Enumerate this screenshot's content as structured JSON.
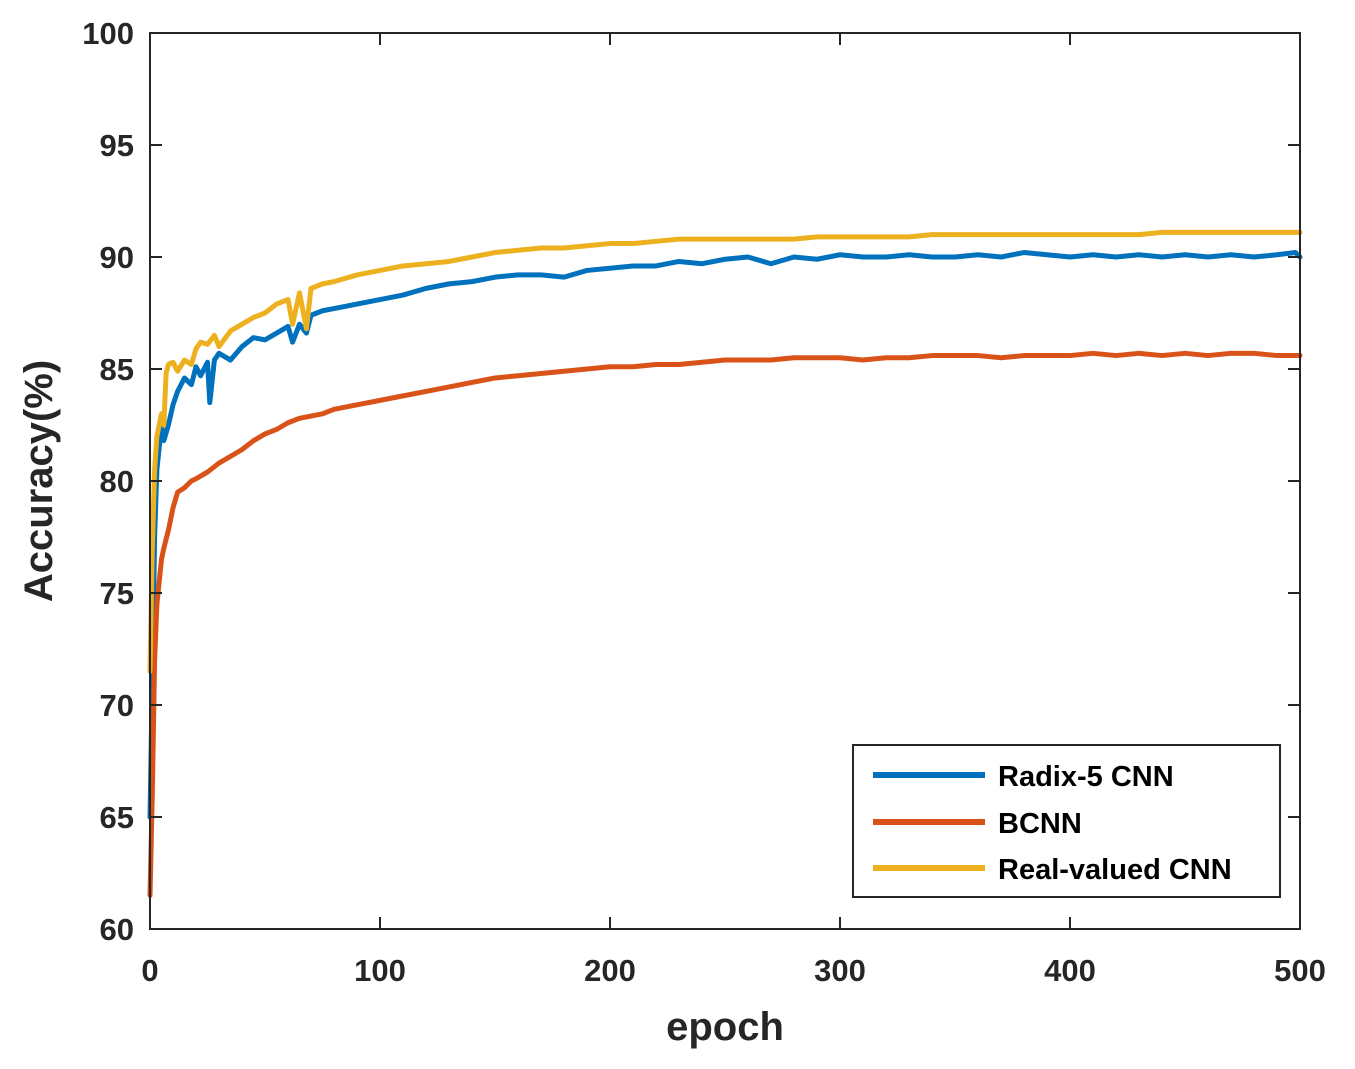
{
  "chart_data": {
    "type": "line",
    "title": "",
    "xlabel": "epoch",
    "ylabel": "Accuracy(%)",
    "xlim": [
      0,
      500
    ],
    "ylim": [
      60,
      100
    ],
    "xticks": [
      0,
      100,
      200,
      300,
      400,
      500
    ],
    "yticks": [
      60,
      65,
      70,
      75,
      80,
      85,
      90,
      95,
      100
    ],
    "grid": false,
    "legend": {
      "position": "bottom-right",
      "boxed": true
    },
    "series": [
      {
        "name": "Radix-5 CNN",
        "color": "#0072BD",
        "x": [
          0,
          1,
          2,
          3,
          4,
          5,
          6,
          8,
          10,
          12,
          15,
          18,
          20,
          22,
          25,
          26,
          28,
          30,
          35,
          40,
          45,
          50,
          55,
          60,
          62,
          65,
          68,
          70,
          75,
          80,
          90,
          100,
          110,
          120,
          130,
          140,
          150,
          160,
          170,
          180,
          190,
          200,
          210,
          220,
          230,
          240,
          250,
          260,
          270,
          280,
          290,
          300,
          310,
          320,
          330,
          340,
          350,
          360,
          370,
          380,
          390,
          400,
          410,
          420,
          430,
          440,
          450,
          460,
          470,
          480,
          490,
          498,
          500
        ],
        "y": [
          65.0,
          71.0,
          77.5,
          80.5,
          81.5,
          82.5,
          81.8,
          82.5,
          83.4,
          84.0,
          84.6,
          84.3,
          85.1,
          84.7,
          85.3,
          83.5,
          85.4,
          85.7,
          85.4,
          86.0,
          86.4,
          86.3,
          86.6,
          86.9,
          86.2,
          87.0,
          86.6,
          87.4,
          87.6,
          87.7,
          87.9,
          88.1,
          88.3,
          88.6,
          88.8,
          88.9,
          89.1,
          89.2,
          89.2,
          89.1,
          89.4,
          89.5,
          89.6,
          89.6,
          89.8,
          89.7,
          89.9,
          90.0,
          89.7,
          90.0,
          89.9,
          90.1,
          90.0,
          90.0,
          90.1,
          90.0,
          90.0,
          90.1,
          90.0,
          90.2,
          90.1,
          90.0,
          90.1,
          90.0,
          90.1,
          90.0,
          90.1,
          90.0,
          90.1,
          90.0,
          90.1,
          90.2,
          90.0
        ]
      },
      {
        "name": "BCNN",
        "color": "#D95319",
        "x": [
          0,
          1,
          2,
          3,
          4,
          5,
          6,
          8,
          10,
          12,
          15,
          18,
          20,
          25,
          30,
          35,
          40,
          45,
          50,
          55,
          60,
          65,
          70,
          75,
          80,
          85,
          90,
          100,
          110,
          120,
          130,
          140,
          150,
          160,
          170,
          180,
          190,
          200,
          210,
          220,
          230,
          240,
          250,
          260,
          270,
          280,
          290,
          300,
          310,
          320,
          330,
          340,
          350,
          360,
          370,
          380,
          390,
          400,
          410,
          420,
          430,
          440,
          450,
          460,
          470,
          480,
          490,
          500
        ],
        "y": [
          61.5,
          66.0,
          72.0,
          74.5,
          75.5,
          76.5,
          77.0,
          77.8,
          78.8,
          79.5,
          79.7,
          80.0,
          80.1,
          80.4,
          80.8,
          81.1,
          81.4,
          81.8,
          82.1,
          82.3,
          82.6,
          82.8,
          82.9,
          83.0,
          83.2,
          83.3,
          83.4,
          83.6,
          83.8,
          84.0,
          84.2,
          84.4,
          84.6,
          84.7,
          84.8,
          84.9,
          85.0,
          85.1,
          85.1,
          85.2,
          85.2,
          85.3,
          85.4,
          85.4,
          85.4,
          85.5,
          85.5,
          85.5,
          85.4,
          85.5,
          85.5,
          85.6,
          85.6,
          85.6,
          85.5,
          85.6,
          85.6,
          85.6,
          85.7,
          85.6,
          85.7,
          85.6,
          85.7,
          85.6,
          85.7,
          85.7,
          85.6,
          85.6
        ]
      },
      {
        "name": "Real-valued CNN",
        "color": "#EDB120",
        "x": [
          0,
          1,
          2,
          3,
          4,
          5,
          6,
          7,
          8,
          10,
          12,
          15,
          18,
          20,
          22,
          25,
          28,
          30,
          35,
          40,
          45,
          50,
          55,
          60,
          62,
          65,
          68,
          70,
          75,
          80,
          90,
          100,
          110,
          120,
          130,
          140,
          150,
          160,
          170,
          180,
          190,
          200,
          210,
          220,
          230,
          240,
          250,
          260,
          270,
          280,
          290,
          300,
          310,
          320,
          330,
          340,
          350,
          360,
          370,
          380,
          390,
          400,
          410,
          420,
          430,
          440,
          450,
          460,
          470,
          480,
          490,
          500
        ],
        "y": [
          71.5,
          77.0,
          80.5,
          82.0,
          82.5,
          83.0,
          82.5,
          84.8,
          85.2,
          85.3,
          84.9,
          85.4,
          85.2,
          85.9,
          86.2,
          86.1,
          86.5,
          86.0,
          86.7,
          87.0,
          87.3,
          87.5,
          87.9,
          88.1,
          87.0,
          88.4,
          86.8,
          88.6,
          88.8,
          88.9,
          89.2,
          89.4,
          89.6,
          89.7,
          89.8,
          90.0,
          90.2,
          90.3,
          90.4,
          90.4,
          90.5,
          90.6,
          90.6,
          90.7,
          90.8,
          90.8,
          90.8,
          90.8,
          90.8,
          90.8,
          90.9,
          90.9,
          90.9,
          90.9,
          90.9,
          91.0,
          91.0,
          91.0,
          91.0,
          91.0,
          91.0,
          91.0,
          91.0,
          91.0,
          91.0,
          91.1,
          91.1,
          91.1,
          91.1,
          91.1,
          91.1,
          91.1
        ]
      }
    ]
  }
}
